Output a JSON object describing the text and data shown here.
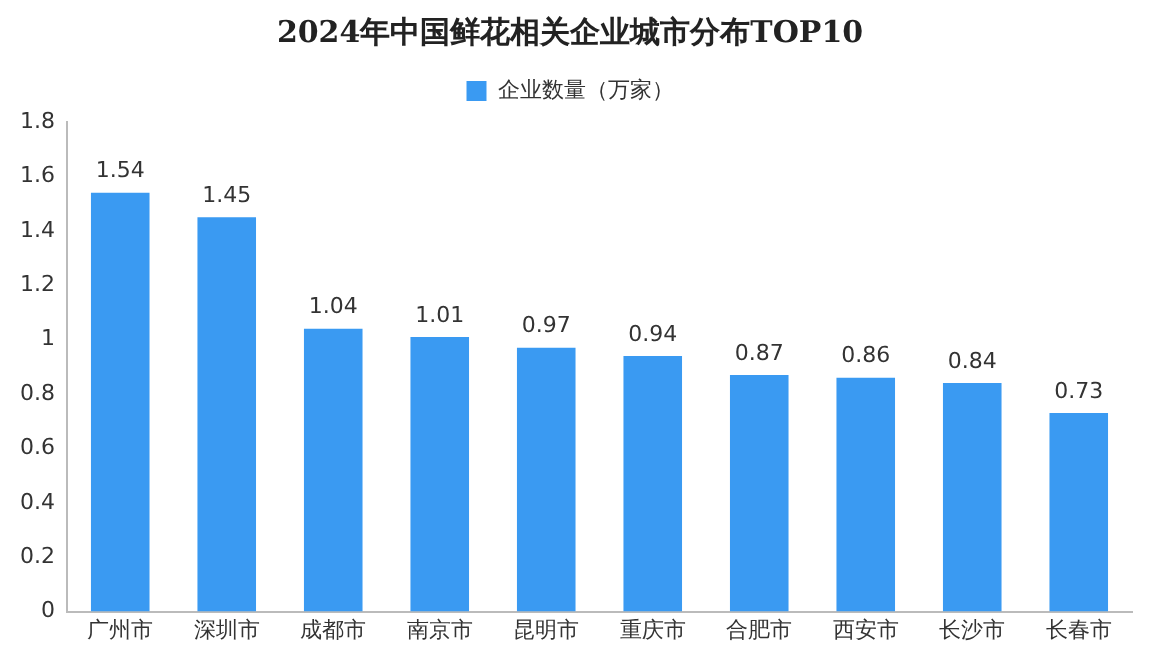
{
  "chart_data": {
    "type": "bar",
    "title": "2024年中国鲜花相关企业城市分布TOP10",
    "categories": [
      "广州市",
      "深圳市",
      "成都市",
      "南京市",
      "昆明市",
      "重庆市",
      "合肥市",
      "西安市",
      "长沙市",
      "长春市"
    ],
    "series": [
      {
        "name": "企业数量（万家）",
        "color": "#3a9af2",
        "values": [
          1.54,
          1.45,
          1.04,
          1.01,
          0.97,
          0.94,
          0.87,
          0.86,
          0.84,
          0.73
        ]
      }
    ],
    "ylim": [
      0,
      1.8
    ],
    "yticks": [
      0,
      0.2,
      0.4,
      0.6,
      0.8,
      1,
      1.2,
      1.4,
      1.6,
      1.8
    ],
    "grid": false,
    "legend": "top",
    "data_labels": true
  }
}
